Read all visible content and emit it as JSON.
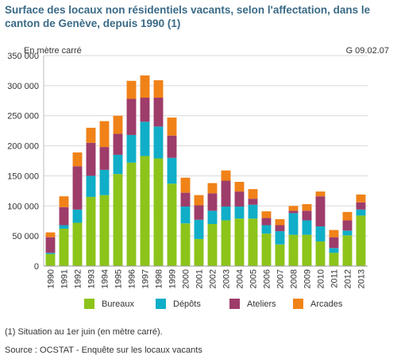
{
  "header": {
    "title": "Surface des locaux non résidentiels vacants, selon l'affectation, dans le canton de Genève, depuis 1990 (1)",
    "unit_label": "En mètre carré",
    "code": "G 09.02.07"
  },
  "footer": {
    "note": "(1) Situation au 1er juin (en mètre carré).",
    "source": "Source : OCSTAT - Enquête sur les locaux vacants"
  },
  "chart_data": {
    "type": "bar",
    "stacked": true,
    "title": "Surface des locaux non résidentiels vacants, selon l'affectation, dans le canton de Genève, depuis 1990 (1)",
    "ylabel": "En mètre carré",
    "xlabel": "",
    "ylim": [
      0,
      350000
    ],
    "yticks": [
      0,
      50000,
      100000,
      150000,
      200000,
      250000,
      300000,
      350000
    ],
    "ytick_labels": [
      "0",
      "50 000",
      "100 000",
      "150 000",
      "200 000",
      "250 000",
      "300 000",
      "350 000"
    ],
    "grid": true,
    "legend_position": "bottom",
    "categories": [
      "1990",
      "1991",
      "1992",
      "1993",
      "1994",
      "1995",
      "1996",
      "1997",
      "1998",
      "1999",
      "2000",
      "2001",
      "2002",
      "2003",
      "2004",
      "2005",
      "2006",
      "2007",
      "2008",
      "2009",
      "2010",
      "2011",
      "2012",
      "2013"
    ],
    "series": [
      {
        "name": "Bureaux",
        "color": "#8cc41a",
        "values": [
          20000,
          62000,
          72000,
          115000,
          118000,
          153000,
          172000,
          183000,
          179000,
          137000,
          71000,
          45000,
          70000,
          76000,
          79000,
          79000,
          54000,
          36000,
          52000,
          52000,
          41000,
          22000,
          51000,
          84000
        ]
      },
      {
        "name": "Dépôts",
        "color": "#10aec8",
        "values": [
          2000,
          6000,
          22000,
          35000,
          42000,
          32000,
          46000,
          57000,
          53000,
          43000,
          28000,
          32000,
          22000,
          23000,
          20000,
          23000,
          14000,
          22000,
          36000,
          24000,
          25000,
          8000,
          8000,
          10000
        ]
      },
      {
        "name": "Ateliers",
        "color": "#9e3c6a",
        "values": [
          26000,
          30000,
          72000,
          55000,
          38000,
          35000,
          60000,
          40000,
          48000,
          37000,
          23000,
          24000,
          29000,
          43000,
          25000,
          10000,
          12000,
          10000,
          4000,
          16000,
          50000,
          18000,
          17000,
          12000
        ]
      },
      {
        "name": "Arcades",
        "color": "#f08218",
        "values": [
          8000,
          18000,
          23000,
          25000,
          43000,
          30000,
          30000,
          37000,
          29000,
          30000,
          25000,
          17000,
          17000,
          17000,
          16000,
          16000,
          11000,
          10000,
          8000,
          11000,
          8000,
          12000,
          14000,
          13000
        ]
      }
    ]
  }
}
